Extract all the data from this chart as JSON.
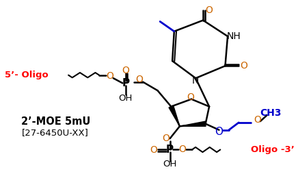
{
  "bg_color": "#ffffff",
  "label_2moe": "2’-MOE 5mU",
  "label_catalog": "[27-6450U-XX]",
  "label_5oligo": "5’- Oligo",
  "label_3oligo": "Oligo -3’",
  "label_ch3": "CH3",
  "color_red": "#ff0000",
  "color_blue": "#0000cc",
  "color_orange": "#cc6600",
  "color_black": "#000000",
  "figsize": [
    4.36,
    2.54
  ],
  "dpi": 100
}
